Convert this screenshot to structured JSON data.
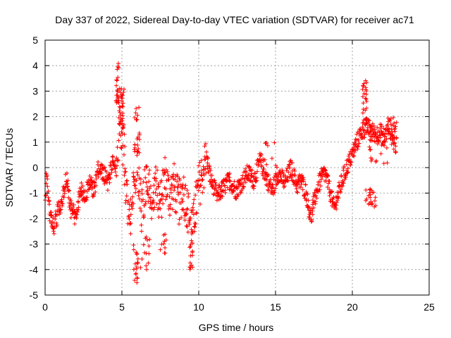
{
  "chart_data": {
    "type": "scatter",
    "title": "Day 337 of 2022, Sidereal Day-to-day VTEC variation (SDTVAR) for receiver ac71",
    "xlabel": "GPS time / hours",
    "ylabel": "SDTVAR / TECUs",
    "xlim": [
      0,
      25
    ],
    "ylim": [
      -5,
      5
    ],
    "xticks": [
      "0",
      "5",
      "10",
      "15",
      "20",
      "25"
    ],
    "yticks": [
      "-5",
      "-4",
      "-3",
      "-2",
      "-1",
      "0",
      "1",
      "2",
      "3",
      "4",
      "5"
    ],
    "grid": true,
    "marker": "plus",
    "series": [
      {
        "name": "SDTVAR",
        "color": "#ff0000",
        "anchors": [
          [
            0.0,
            -1.6
          ],
          [
            0.1,
            -0.2
          ],
          [
            0.3,
            -1.9
          ],
          [
            0.6,
            -2.3
          ],
          [
            0.9,
            -1.6
          ],
          [
            1.1,
            -1.3
          ],
          [
            1.4,
            -0.3
          ],
          [
            1.7,
            -1.7
          ],
          [
            2.0,
            -1.9
          ],
          [
            2.3,
            -0.9
          ],
          [
            2.6,
            -1.1
          ],
          [
            2.9,
            -0.6
          ],
          [
            3.2,
            -0.9
          ],
          [
            3.5,
            0.0
          ],
          [
            3.8,
            -0.2
          ],
          [
            4.1,
            -0.6
          ],
          [
            4.4,
            0.3
          ],
          [
            4.6,
            -0.1
          ],
          [
            4.75,
            0.8
          ],
          [
            4.9,
            1.9
          ],
          [
            5.1,
            0.7
          ],
          [
            5.3,
            -1.2
          ],
          [
            5.5,
            -2.2
          ],
          [
            5.7,
            -0.8
          ],
          [
            6.0,
            0.3
          ],
          [
            6.3,
            -1.8
          ],
          [
            6.6,
            -0.4
          ],
          [
            6.9,
            -1.2
          ],
          [
            7.2,
            -0.6
          ],
          [
            7.5,
            -1.5
          ],
          [
            7.8,
            -0.3
          ],
          [
            8.1,
            -1.1
          ],
          [
            8.4,
            -0.7
          ],
          [
            8.7,
            -1.4
          ],
          [
            9.0,
            -0.9
          ],
          [
            9.3,
            -1.7
          ],
          [
            9.6,
            -2.4
          ],
          [
            9.85,
            -1.3
          ],
          [
            10.0,
            -0.8
          ],
          [
            10.5,
            0.4
          ],
          [
            10.8,
            -0.5
          ],
          [
            11.2,
            -1.1
          ],
          [
            11.6,
            -0.8
          ],
          [
            12.0,
            -0.5
          ],
          [
            12.4,
            -0.9
          ],
          [
            12.8,
            -0.6
          ],
          [
            13.2,
            -0.2
          ],
          [
            13.6,
            -0.5
          ],
          [
            14.0,
            0.3
          ],
          [
            14.4,
            -0.4
          ],
          [
            14.8,
            -0.9
          ],
          [
            15.2,
            -0.2
          ],
          [
            15.6,
            -0.6
          ],
          [
            16.0,
            0.0
          ],
          [
            16.4,
            -0.7
          ],
          [
            16.7,
            -0.5
          ],
          [
            17.0,
            -1.0
          ],
          [
            17.3,
            -2.0
          ],
          [
            17.6,
            -1.1
          ],
          [
            17.9,
            -0.5
          ],
          [
            18.2,
            -0.2
          ],
          [
            18.5,
            -0.8
          ],
          [
            18.8,
            -1.6
          ],
          [
            19.1,
            -1.0
          ],
          [
            19.4,
            -0.4
          ],
          [
            19.7,
            0.1
          ],
          [
            20.0,
            0.5
          ],
          [
            20.3,
            1.0
          ],
          [
            20.6,
            1.4
          ],
          [
            20.9,
            1.6
          ],
          [
            21.2,
            1.5
          ],
          [
            21.5,
            1.3
          ],
          [
            21.8,
            1.4
          ],
          [
            22.1,
            1.2
          ],
          [
            22.4,
            1.6
          ],
          [
            22.7,
            1.0
          ],
          [
            22.9,
            0.8
          ]
        ],
        "bursts": [
          {
            "x": 4.7,
            "y": 3.3,
            "count": 22,
            "xspread": 0.1,
            "yspread": 0.8
          },
          {
            "x": 5.0,
            "y": 2.3,
            "count": 26,
            "xspread": 0.18,
            "yspread": 1.0
          },
          {
            "x": 6.0,
            "y": 1.4,
            "count": 20,
            "xspread": 0.2,
            "yspread": 1.0
          },
          {
            "x": 5.9,
            "y": -3.8,
            "count": 18,
            "xspread": 0.15,
            "yspread": 0.8
          },
          {
            "x": 6.5,
            "y": -3.2,
            "count": 14,
            "xspread": 0.3,
            "yspread": 0.8
          },
          {
            "x": 7.7,
            "y": -3.0,
            "count": 10,
            "xspread": 0.2,
            "yspread": 0.4
          },
          {
            "x": 9.5,
            "y": -3.4,
            "count": 14,
            "xspread": 0.1,
            "yspread": 0.6
          },
          {
            "x": 20.8,
            "y": 2.6,
            "count": 26,
            "xspread": 0.15,
            "yspread": 0.9
          },
          {
            "x": 21.2,
            "y": -1.2,
            "count": 22,
            "xspread": 0.35,
            "yspread": 0.4
          },
          {
            "x": 21.7,
            "y": 0.6,
            "count": 20,
            "xspread": 0.6,
            "yspread": 0.5
          },
          {
            "x": 22.6,
            "y": 1.6,
            "count": 14,
            "xspread": 0.3,
            "yspread": 0.4
          },
          {
            "x": 14.7,
            "y": 0.5,
            "count": 10,
            "xspread": 0.4,
            "yspread": 0.5
          }
        ]
      }
    ]
  }
}
